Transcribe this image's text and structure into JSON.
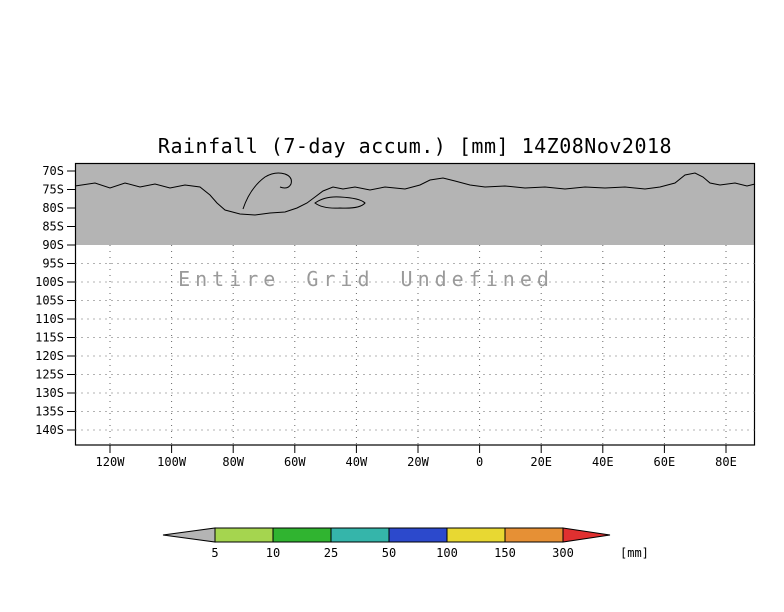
{
  "title": "Rainfall (7-day accum.) [mm] 14Z08Nov2018",
  "undefined_message": "Entire Grid Undefined",
  "chart_data": {
    "type": "heatmap",
    "title": "Rainfall (7-day accum.) [mm] 14Z08Nov2018",
    "status_annotation": "Entire Grid Undefined",
    "values": "no data plotted - entire grid undefined",
    "grid": "dotted",
    "x_ticks": [
      "120W",
      "100W",
      "80W",
      "60W",
      "40W",
      "20W",
      "0",
      "20E",
      "40E",
      "60E",
      "80E"
    ],
    "y_ticks": [
      "70S",
      "75S",
      "80S",
      "85S",
      "90S",
      "95S",
      "100S",
      "105S",
      "110S",
      "115S",
      "120S",
      "125S",
      "130S",
      "135S",
      "140S"
    ],
    "shaded_region": {
      "lat_range": [
        "70S",
        "90S"
      ],
      "color": "#b4b4b4",
      "description": "gray shaded band with Antarctic coastline contour"
    },
    "annotation_color": "#9a9a9a",
    "legend_position": "bottom",
    "colorbar": {
      "units": "[mm]",
      "levels": [
        "5",
        "10",
        "25",
        "50",
        "100",
        "150",
        "300"
      ],
      "colors": [
        "#b4b4b4",
        "#a5d54f",
        "#30b430",
        "#35b5aa",
        "#2c49cc",
        "#e8d832",
        "#e69035",
        "#e03030"
      ]
    }
  }
}
